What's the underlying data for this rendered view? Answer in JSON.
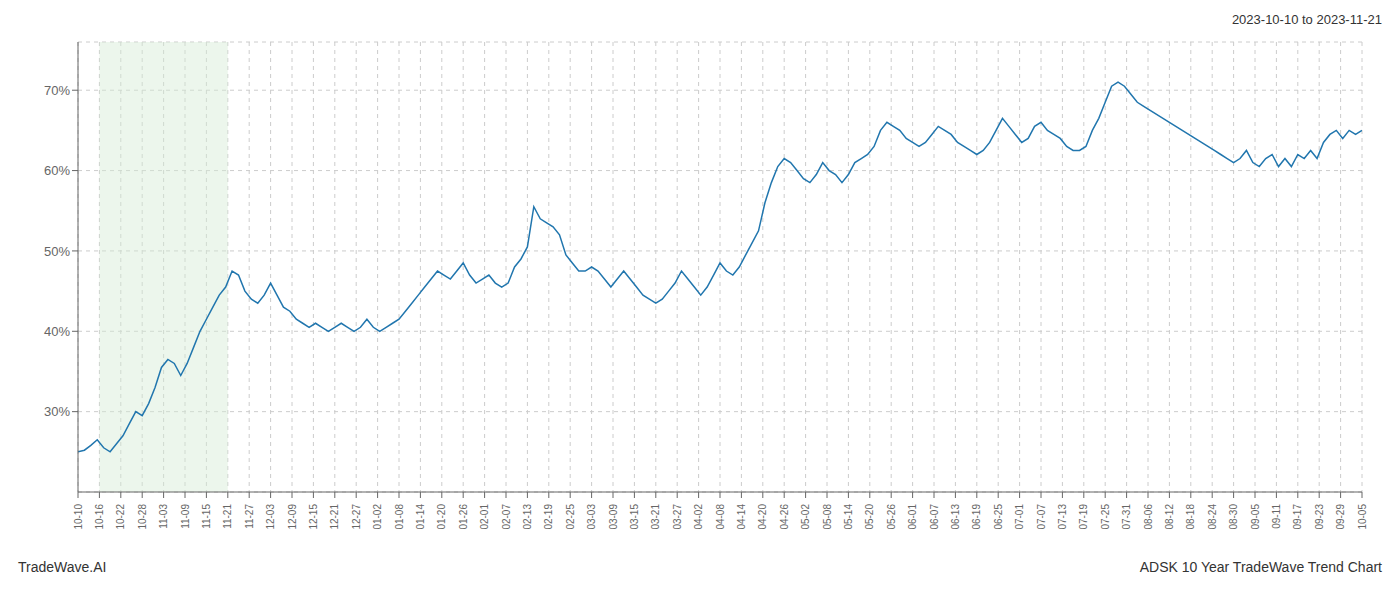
{
  "chart_data": {
    "type": "line",
    "title": "2023-10-10 to 2023-11-21",
    "annotations": [
      "TradeWave.AI",
      "ADSK 10 Year TradeWave Trend Chart"
    ],
    "color": "#2176ae",
    "grid": true,
    "xlim": [
      0,
      200
    ],
    "xticks": [
      {
        "value": 0,
        "label": "10-10"
      },
      {
        "value": 3.333333,
        "label": "10-16"
      },
      {
        "value": 6.666667,
        "label": "10-22"
      },
      {
        "value": 10,
        "label": "10-28"
      },
      {
        "value": 13.333333,
        "label": "11-03"
      },
      {
        "value": 16.666667,
        "label": "11-09"
      },
      {
        "value": 20,
        "label": "11-15"
      },
      {
        "value": 23.333333,
        "label": "11-21"
      },
      {
        "value": 26.666667,
        "label": "11-27"
      },
      {
        "value": 30,
        "label": "12-03"
      },
      {
        "value": 33.333333,
        "label": "12-09"
      },
      {
        "value": 36.666667,
        "label": "12-15"
      },
      {
        "value": 40,
        "label": "12-21"
      },
      {
        "value": 43.333333,
        "label": "12-27"
      },
      {
        "value": 46.666667,
        "label": "01-02"
      },
      {
        "value": 50,
        "label": "01-08"
      },
      {
        "value": 53.333333,
        "label": "01-14"
      },
      {
        "value": 56.666667,
        "label": "01-20"
      },
      {
        "value": 60,
        "label": "01-26"
      },
      {
        "value": 63.333333,
        "label": "02-01"
      },
      {
        "value": 66.666667,
        "label": "02-07"
      },
      {
        "value": 70,
        "label": "02-13"
      },
      {
        "value": 73.333333,
        "label": "02-19"
      },
      {
        "value": 76.666667,
        "label": "02-25"
      },
      {
        "value": 80,
        "label": "03-03"
      },
      {
        "value": 83.333333,
        "label": "03-09"
      },
      {
        "value": 86.666667,
        "label": "03-15"
      },
      {
        "value": 90,
        "label": "03-21"
      },
      {
        "value": 93.333333,
        "label": "03-27"
      },
      {
        "value": 96.666667,
        "label": "04-02"
      },
      {
        "value": 100,
        "label": "04-08"
      },
      {
        "value": 103.333333,
        "label": "04-14"
      },
      {
        "value": 106.666667,
        "label": "04-20"
      },
      {
        "value": 110,
        "label": "04-26"
      },
      {
        "value": 113.333333,
        "label": "05-02"
      },
      {
        "value": 116.666667,
        "label": "05-08"
      },
      {
        "value": 120,
        "label": "05-14"
      },
      {
        "value": 123.333333,
        "label": "05-20"
      },
      {
        "value": 126.666667,
        "label": "05-26"
      },
      {
        "value": 130,
        "label": "06-01"
      },
      {
        "value": 133.333333,
        "label": "06-07"
      },
      {
        "value": 136.666667,
        "label": "06-13"
      },
      {
        "value": 140,
        "label": "06-19"
      },
      {
        "value": 143.333333,
        "label": "06-25"
      },
      {
        "value": 146.666667,
        "label": "07-01"
      },
      {
        "value": 150,
        "label": "07-07"
      },
      {
        "value": 153.333333,
        "label": "07-13"
      },
      {
        "value": 156.666667,
        "label": "07-19"
      },
      {
        "value": 160,
        "label": "07-25"
      },
      {
        "value": 163.333333,
        "label": "07-31"
      },
      {
        "value": 166.666667,
        "label": "08-06"
      },
      {
        "value": 170,
        "label": "08-12"
      },
      {
        "value": 173.333333,
        "label": "08-18"
      },
      {
        "value": 176.666667,
        "label": "08-24"
      },
      {
        "value": 180,
        "label": "08-30"
      },
      {
        "value": 183.333333,
        "label": "09-05"
      },
      {
        "value": 186.666667,
        "label": "09-11"
      },
      {
        "value": 190,
        "label": "09-17"
      },
      {
        "value": 193.333333,
        "label": "09-23"
      },
      {
        "value": 196.666667,
        "label": "09-29"
      },
      {
        "value": 200,
        "label": "10-05"
      }
    ],
    "ylim": [
      20,
      76
    ],
    "yticks": [
      {
        "value": 30,
        "label": "30%"
      },
      {
        "value": 40,
        "label": "40%"
      },
      {
        "value": 50,
        "label": "50%"
      },
      {
        "value": 60,
        "label": "60%"
      },
      {
        "value": 70,
        "label": "70%"
      }
    ],
    "shade": {
      "start": "10-16",
      "end": "11-21",
      "color": "#d4ead4"
    },
    "x": [
      0,
      1,
      2,
      3,
      4,
      5,
      6,
      7,
      8,
      9,
      10,
      11,
      12,
      13,
      14,
      15,
      16,
      17,
      18,
      19,
      20,
      21,
      22,
      23,
      24,
      25,
      26,
      27,
      28,
      29,
      30,
      31,
      32,
      33,
      34,
      35,
      36,
      37,
      38,
      39,
      40,
      41,
      42,
      43,
      44,
      45,
      46,
      47,
      48,
      49,
      50,
      51,
      52,
      53,
      54,
      55,
      56,
      57,
      58,
      59,
      60,
      61,
      62,
      63,
      64,
      65,
      66,
      67,
      68,
      69,
      70,
      71,
      72,
      73,
      74,
      75,
      76,
      77,
      78,
      79,
      80,
      81,
      82,
      83,
      84,
      85,
      86,
      87,
      88,
      89,
      90,
      91,
      92,
      93,
      94,
      95,
      96,
      97,
      98,
      99,
      100,
      101,
      102,
      103,
      104,
      105,
      106,
      107,
      108,
      109,
      110,
      111,
      112,
      113,
      114,
      115,
      116,
      117,
      118,
      119,
      120,
      121,
      122,
      123,
      124,
      125,
      126,
      127,
      128,
      129,
      130,
      131,
      132,
      133,
      134,
      135,
      136,
      137,
      138,
      139,
      140,
      141,
      142,
      143,
      144,
      145,
      146,
      147,
      148,
      149,
      150,
      151,
      152,
      153,
      154,
      155,
      156,
      157,
      158,
      159,
      160,
      161,
      162,
      163,
      164,
      165,
      166,
      167,
      168,
      169,
      170,
      171,
      172,
      173,
      174,
      175,
      176,
      177,
      178,
      179,
      180,
      181,
      182,
      183,
      184,
      185,
      186,
      187,
      188,
      189,
      190,
      191,
      192,
      193,
      194,
      195,
      196,
      197,
      198,
      199,
      200
    ],
    "values": [
      25.0,
      25.2,
      25.8,
      26.5,
      25.5,
      25.0,
      26.0,
      27.0,
      28.5,
      30.0,
      29.5,
      31.0,
      33.0,
      35.5,
      36.5,
      36.0,
      34.5,
      36.0,
      38.0,
      40.0,
      41.5,
      43.0,
      44.5,
      45.5,
      47.5,
      47.0,
      45.0,
      44.0,
      43.5,
      44.5,
      46.0,
      44.5,
      43.0,
      42.5,
      41.5,
      41.0,
      40.5,
      41.0,
      40.5,
      40.0,
      40.5,
      41.0,
      40.5,
      40.0,
      40.5,
      41.5,
      40.5,
      40.0,
      40.5,
      41.0,
      41.5,
      42.5,
      43.5,
      44.5,
      45.5,
      46.5,
      47.5,
      47.0,
      46.5,
      47.5,
      48.5,
      47.0,
      46.0,
      46.5,
      47.0,
      46.0,
      45.5,
      46.0,
      48.0,
      49.0,
      50.5,
      55.5,
      54.0,
      53.5,
      53.0,
      52.0,
      49.5,
      48.5,
      47.5,
      47.5,
      48.0,
      47.5,
      46.5,
      45.5,
      46.5,
      47.5,
      46.5,
      45.5,
      44.5,
      44.0,
      43.5,
      44.0,
      45.0,
      46.0,
      47.5,
      46.5,
      45.5,
      44.5,
      45.5,
      47.0,
      48.5,
      47.5,
      47.0,
      48.0,
      49.5,
      51.0,
      52.5,
      56.0,
      58.5,
      60.5,
      61.5,
      61.0,
      60.0,
      59.0,
      58.5,
      59.5,
      61.0,
      60.0,
      59.5,
      58.5,
      59.5,
      61.0,
      61.5,
      62.0,
      63.0,
      65.0,
      66.0,
      65.5,
      65.0,
      64.0,
      63.5,
      63.0,
      63.5,
      64.5,
      65.5,
      65.0,
      64.5,
      63.5,
      63.0,
      62.5,
      62.0,
      62.5,
      63.5,
      65.0,
      66.5,
      65.5,
      64.5,
      63.5,
      64.0,
      65.5,
      66.0,
      65.0,
      64.5,
      64.0,
      63.0,
      62.5,
      62.5,
      63.0,
      65.0,
      66.5,
      68.5,
      70.5,
      71.0,
      70.5,
      69.5,
      68.5,
      68.0,
      67.5,
      67.0,
      66.5,
      66.0,
      65.5,
      65.0,
      64.5,
      64.0,
      63.5,
      63.0,
      62.5,
      62.0,
      61.5,
      61.0,
      61.5,
      62.5,
      61.0,
      60.5,
      61.5,
      62.0,
      60.5,
      61.5,
      60.5,
      62.0,
      61.5,
      62.5,
      61.5,
      63.5,
      64.5,
      65.0,
      64.0,
      65.0,
      64.5,
      65.0
    ]
  }
}
